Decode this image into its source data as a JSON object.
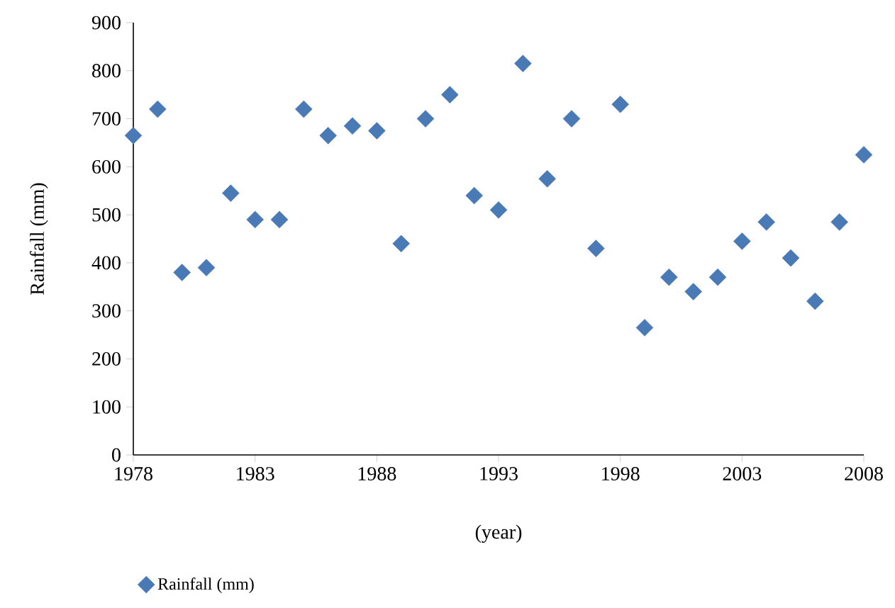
{
  "chart_data": {
    "type": "scatter",
    "xlabel": "(year)",
    "ylabel": "Rainfall (mm)",
    "x": [
      1978,
      1979,
      1980,
      1981,
      1982,
      1983,
      1984,
      1985,
      1986,
      1987,
      1988,
      1989,
      1990,
      1991,
      1992,
      1993,
      1994,
      1995,
      1996,
      1997,
      1998,
      1999,
      2000,
      2001,
      2002,
      2003,
      2004,
      2005,
      2006,
      2007,
      2008
    ],
    "series": [
      {
        "name": "Rainfall (mm)",
        "color": "#4a7ab5",
        "values": [
          665,
          720,
          380,
          390,
          545,
          490,
          490,
          720,
          665,
          685,
          675,
          440,
          700,
          750,
          540,
          510,
          815,
          575,
          700,
          430,
          730,
          265,
          370,
          340,
          370,
          445,
          485,
          410,
          320,
          485,
          625
        ]
      }
    ],
    "xlim": [
      1978,
      2008
    ],
    "xticks": [
      1978,
      1983,
      1988,
      1993,
      1998,
      2003,
      2008
    ],
    "ylim": [
      0,
      900
    ],
    "yticks": [
      0,
      100,
      200,
      300,
      400,
      500,
      600,
      700,
      800,
      900
    ],
    "marker": "diamond",
    "legend": "bottom left",
    "grid": false
  }
}
